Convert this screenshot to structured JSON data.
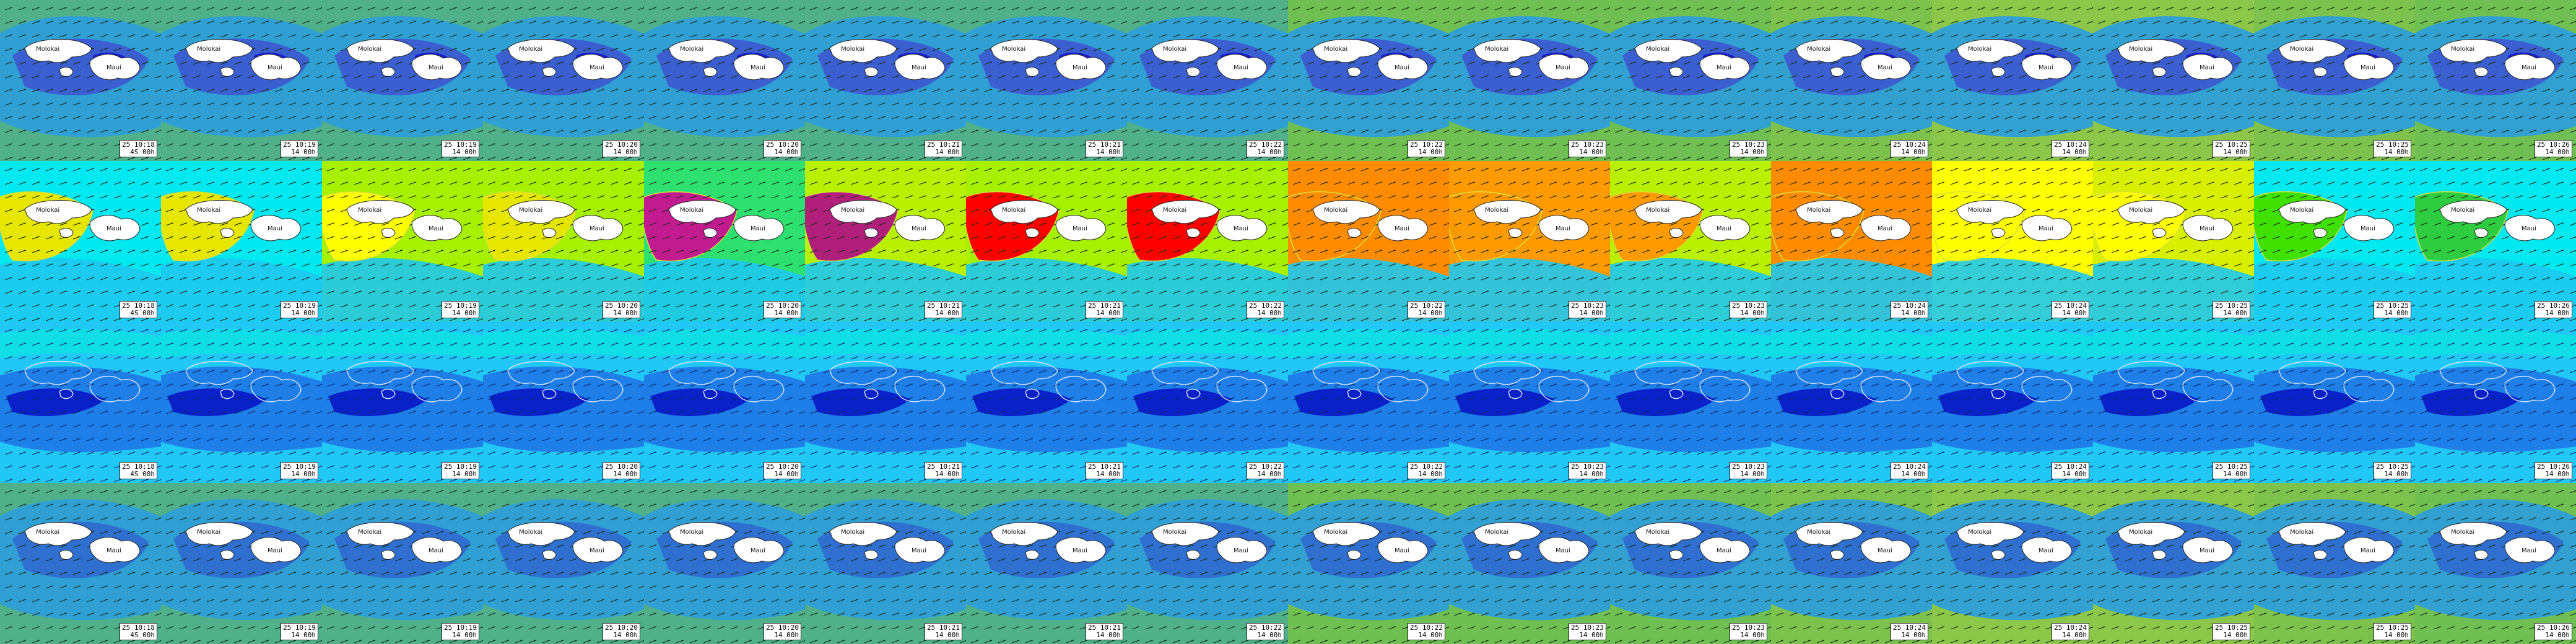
{
  "island_labels": {
    "west": "Molokai",
    "east": "Maui"
  },
  "columns": [
    {
      "code": "25 10:18",
      "hint": "4S 00h"
    },
    {
      "code": "25 10:19",
      "hint": "14 00h"
    },
    {
      "code": "25 10:19",
      "hint": "14 00h"
    },
    {
      "code": "25 10:20",
      "hint": "14 00h"
    },
    {
      "code": "25 10:20",
      "hint": "14 00h"
    },
    {
      "code": "25 10:21",
      "hint": "14 00h"
    },
    {
      "code": "25 10:21",
      "hint": "14 00h"
    },
    {
      "code": "25 10:22",
      "hint": "14 00h"
    },
    {
      "code": "25 10:22",
      "hint": "14 00h"
    },
    {
      "code": "25 10:23",
      "hint": "14 00h"
    },
    {
      "code": "25 10:23",
      "hint": "14 00h"
    },
    {
      "code": "25 10:24",
      "hint": "14 00h"
    },
    {
      "code": "25 10:24",
      "hint": "14 00h"
    },
    {
      "code": "25 10:25",
      "hint": "14 00h"
    },
    {
      "code": "25 10:25",
      "hint": "14 00h"
    },
    {
      "code": "25 10:26",
      "hint": "14 00h"
    }
  ],
  "layers": [
    {
      "name": "wind-swell",
      "colors": {
        "background": [
          "#4fb08a",
          "#4fb08a",
          "#4fb08a",
          "#4fb08a",
          "#4fb08a",
          "#4fb08a",
          "#4fb08a",
          "#4fb08a",
          "#6fbf52",
          "#6fbf52",
          "#6fbf52",
          "#7cc24d",
          "#8cc74a",
          "#8cc74a",
          "#7cc24d",
          "#6fbf52"
        ],
        "mid": "#2e9fd8",
        "core": "#3b5fd0",
        "hot": "#1a1fd0"
      }
    },
    {
      "name": "wind-speed",
      "colors": {
        "background": [
          "#00e8f0",
          "#00e8f0",
          "#a6f000",
          "#a6f000",
          "#2ee070",
          "#b8f000",
          "#a6f000",
          "#a6f000",
          "#ff8c00",
          "#ff9a00",
          "#b8f000",
          "#ff8c00",
          "#ffff00",
          "#d8f000",
          "#00e8f0",
          "#00e8f0"
        ],
        "blob": [
          "#e6e600",
          "#e6e600",
          "#ffff00",
          "#e6e600",
          "#c21a8f",
          "#b0207a",
          "#ff0000",
          "#ff0000",
          "#ff8c00",
          "#ff9a00",
          "#ff9a00",
          "#ff8c00",
          "#ffff00",
          "#ffff00",
          "#40e000",
          "#2ecc40"
        ],
        "sea": "#1ec8f0"
      }
    },
    {
      "name": "wave-height",
      "colors": {
        "background": "#22c8f5",
        "mid": "#1e7fe8",
        "deep": "#0a20c8",
        "accent": "#00f0d8"
      }
    },
    {
      "name": "surface-wind",
      "colors": {
        "background": [
          "#4fb08a",
          "#4fb08a",
          "#4fb08a",
          "#4fb08a",
          "#4fb08a",
          "#4fb08a",
          "#4fb08a",
          "#4fb08a",
          "#6fbf52",
          "#6fbf52",
          "#6fbf52",
          "#7cc24d",
          "#8cc74a",
          "#8cc74a",
          "#7cc24d",
          "#6fbf52"
        ],
        "mid": "#2e9fd8",
        "core": "#2f6fd0"
      }
    }
  ]
}
